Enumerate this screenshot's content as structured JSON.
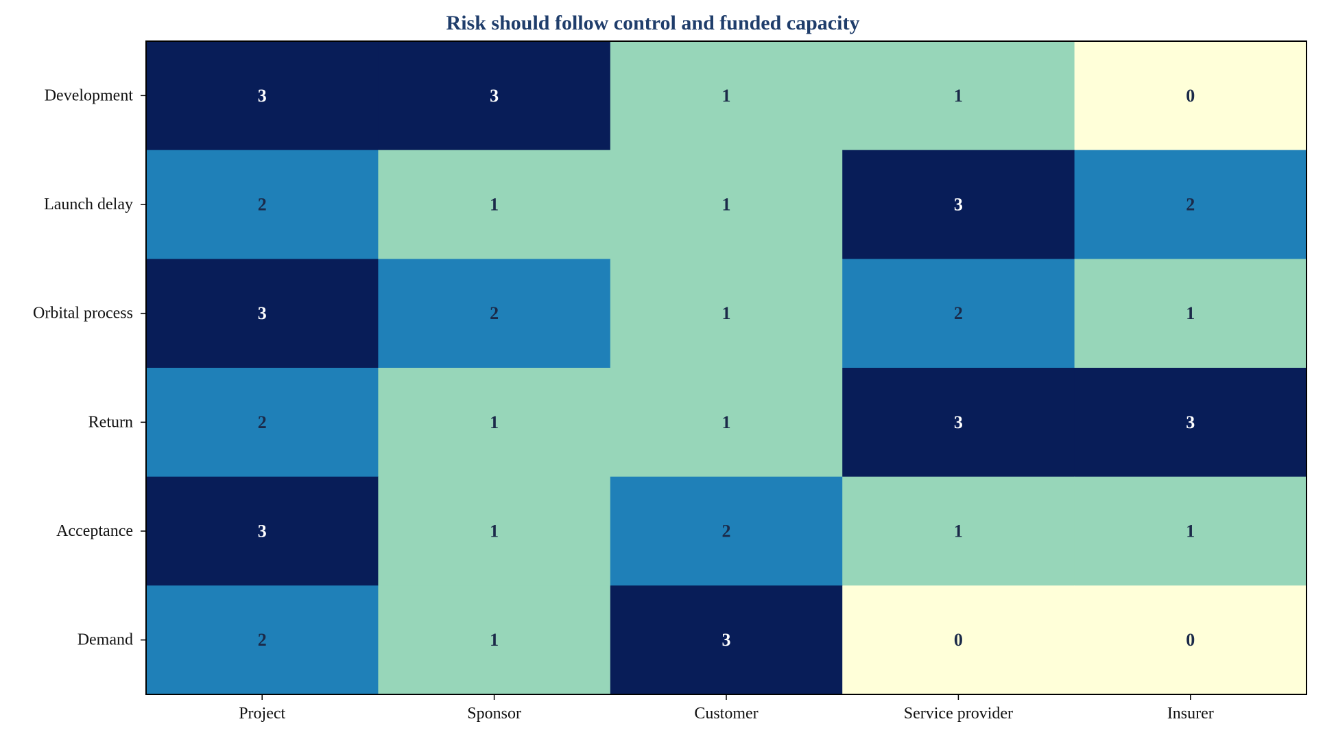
{
  "chart_data": {
    "type": "heatmap",
    "title": "Risk should follow control and funded capacity",
    "xlabel": "",
    "ylabel": "",
    "x_categories": [
      "Project",
      "Sponsor",
      "Customer",
      "Service provider",
      "Insurer"
    ],
    "y_categories": [
      "Development",
      "Launch delay",
      "Orbital process",
      "Return",
      "Acceptance",
      "Demand"
    ],
    "values": [
      [
        3,
        3,
        1,
        1,
        0
      ],
      [
        2,
        1,
        1,
        3,
        2
      ],
      [
        3,
        2,
        1,
        2,
        1
      ],
      [
        2,
        1,
        1,
        3,
        3
      ],
      [
        3,
        1,
        2,
        1,
        1
      ],
      [
        2,
        1,
        3,
        0,
        0
      ]
    ],
    "value_range": [
      0,
      3
    ],
    "colormap": {
      "0": "#ffffd9",
      "1": "#97d6b9",
      "2": "#1f80b8",
      "3": "#081d58"
    },
    "cell_label_colors": {
      "dark_text": "#1b2a49",
      "light_text": "#ffffff"
    },
    "title_color": "#1f3d6b",
    "grid": false,
    "legend": "none"
  }
}
